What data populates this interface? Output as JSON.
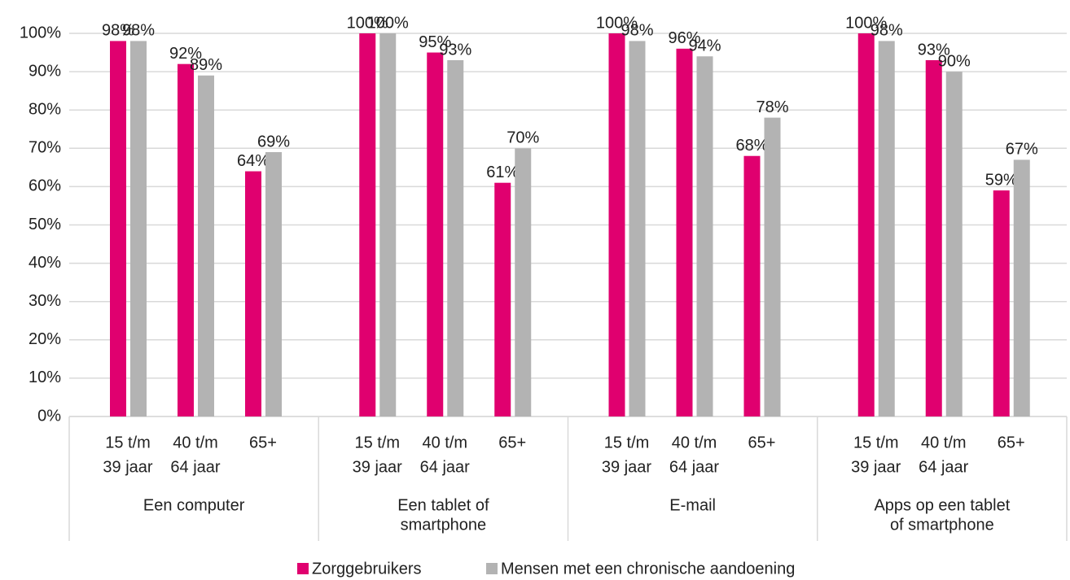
{
  "chart_data": {
    "type": "bar",
    "groups": [
      [
        "Een computer"
      ],
      [
        "Een tablet of",
        "smartphone"
      ],
      [
        "E-mail"
      ],
      [
        "Apps op een tablet",
        "of smartphone"
      ]
    ],
    "categories": [
      [
        "15 t/m",
        "39 jaar"
      ],
      [
        "40 t/m",
        "64 jaar"
      ],
      [
        "65+"
      ],
      [
        "15 t/m",
        "39 jaar"
      ],
      [
        "40 t/m",
        "64 jaar"
      ],
      [
        "65+"
      ],
      [
        "15 t/m",
        "39 jaar"
      ],
      [
        "40 t/m",
        "64 jaar"
      ],
      [
        "65+"
      ],
      [
        "15 t/m",
        "39 jaar"
      ],
      [
        "40 t/m",
        "64 jaar"
      ],
      [
        "65+"
      ]
    ],
    "series": [
      {
        "name": "Zorggebruikers",
        "color": "#e0006f",
        "values": [
          98,
          92,
          64,
          100,
          95,
          61,
          100,
          96,
          68,
          100,
          93,
          59
        ],
        "value_labels": [
          "98%",
          "92%",
          "64%",
          "100%",
          "95%",
          "61%",
          "100%",
          "96%",
          "68%",
          "100%",
          "93%",
          "59%"
        ]
      },
      {
        "name": "Mensen met een chronische aandoening",
        "color": "#b3b3b3",
        "values": [
          98,
          89,
          69,
          100,
          93,
          70,
          98,
          94,
          78,
          98,
          90,
          67
        ],
        "value_labels": [
          "98%",
          "89%",
          "69%",
          "100%",
          "93%",
          "70%",
          "98%",
          "94%",
          "78%",
          "98%",
          "90%",
          "67%"
        ]
      }
    ],
    "ylim": [
      0,
      100
    ],
    "yticks": [
      {
        "value": 0,
        "label": "0%"
      },
      {
        "value": 10,
        "label": "10%"
      },
      {
        "value": 20,
        "label": "20%"
      },
      {
        "value": 30,
        "label": "30%"
      },
      {
        "value": 40,
        "label": "40%"
      },
      {
        "value": 50,
        "label": "50%"
      },
      {
        "value": 60,
        "label": "60%"
      },
      {
        "value": 70,
        "label": "70%"
      },
      {
        "value": 80,
        "label": "80%"
      },
      {
        "value": 90,
        "label": "90%"
      },
      {
        "value": 100,
        "label": "100%"
      }
    ],
    "grid": true,
    "legend": "bottom"
  }
}
